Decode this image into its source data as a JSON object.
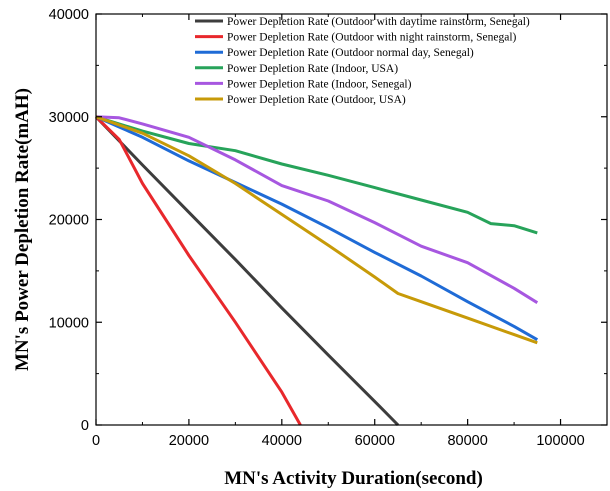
{
  "chart_data": {
    "type": "line",
    "title": "",
    "xlabel": "MN's Activity Duration(second)",
    "ylabel": "MN's Power Depletion Rate(mAH)",
    "xlim": [
      0,
      110000
    ],
    "ylim": [
      0,
      40000
    ],
    "xticks": [
      0,
      20000,
      40000,
      60000,
      80000,
      100000
    ],
    "xtick_labels": [
      "0",
      "20000",
      "40000",
      "60000",
      "80000",
      "100000"
    ],
    "yticks": [
      0,
      10000,
      20000,
      30000,
      40000
    ],
    "ytick_labels": [
      "0",
      "10000",
      "20000",
      "30000",
      "40000"
    ],
    "grid": false,
    "legend_position": "top-right",
    "series": [
      {
        "name": "Power Depletion Rate (Outdoor with daytime rainstorm, Senegal)",
        "color": "#3d3d3d",
        "x": [
          0,
          10000,
          20000,
          30000,
          40000,
          50000,
          60000,
          65000
        ],
        "y": [
          30000,
          25300,
          20700,
          16100,
          11400,
          6800,
          2300,
          0
        ]
      },
      {
        "name": "Power Depletion Rate (Outdoor with night rainstorm, Senegal)",
        "color": "#e8282c",
        "x": [
          0,
          5000,
          10000,
          20000,
          30000,
          40000,
          44000
        ],
        "y": [
          30000,
          27800,
          23500,
          16500,
          10000,
          3200,
          0
        ]
      },
      {
        "name": "Power Depletion Rate (Outdoor  normal day, Senegal)",
        "color": "#1f6bd6",
        "x": [
          0,
          10000,
          20000,
          30000,
          40000,
          50000,
          60000,
          70000,
          80000,
          90000,
          95000
        ],
        "y": [
          30000,
          28000,
          25700,
          23600,
          21500,
          19200,
          16800,
          14500,
          12000,
          9600,
          8300
        ]
      },
      {
        "name": "Power Depletion Rate (Indoor, USA)",
        "color": "#27a35a",
        "x": [
          0,
          10000,
          20000,
          30000,
          40000,
          50000,
          60000,
          70000,
          80000,
          85000,
          90000,
          95000
        ],
        "y": [
          30000,
          28600,
          27400,
          26700,
          25400,
          24300,
          23100,
          21900,
          20700,
          19600,
          19400,
          18700
        ]
      },
      {
        "name": "Power Depletion Rate (Indoor, Senegal)",
        "color": "#a757e0",
        "x": [
          0,
          5000,
          10000,
          20000,
          30000,
          40000,
          50000,
          60000,
          70000,
          80000,
          90000,
          95000
        ],
        "y": [
          30000,
          29900,
          29300,
          28000,
          25800,
          23300,
          21800,
          19700,
          17400,
          15800,
          13300,
          11900
        ]
      },
      {
        "name": "Power Depletion Rate (Outdoor, USA)",
        "color": "#c79a08",
        "x": [
          0,
          10000,
          20000,
          30000,
          40000,
          50000,
          60000,
          65000,
          70000,
          80000,
          90000,
          95000
        ],
        "y": [
          30000,
          28400,
          26200,
          23500,
          20500,
          17500,
          14400,
          12800,
          12000,
          10400,
          8800,
          8000
        ]
      }
    ]
  }
}
